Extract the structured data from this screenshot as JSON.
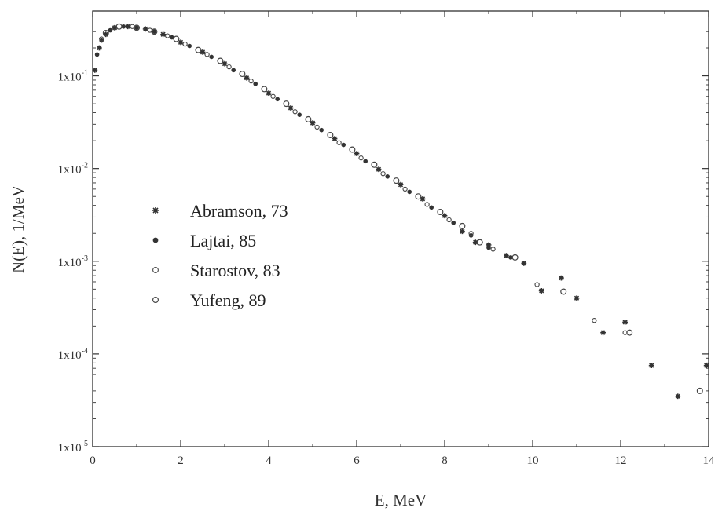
{
  "chart_data": {
    "type": "scatter",
    "title": "",
    "xlabel": "E, MeV",
    "ylabel": "N(E), 1/MeV",
    "xlim": [
      0,
      14
    ],
    "ylim": [
      1e-05,
      0.5
    ],
    "yscale": "log",
    "grid": false,
    "legend_position": "center-left",
    "x_ticks": [
      "0",
      "2",
      "4",
      "6",
      "8",
      "10",
      "12",
      "14"
    ],
    "y_ticks": [
      {
        "base": "1x10",
        "exp": "-5"
      },
      {
        "base": "1x10",
        "exp": "-4"
      },
      {
        "base": "1x10",
        "exp": "-3"
      },
      {
        "base": "1x10",
        "exp": "-2"
      },
      {
        "base": "1x10",
        "exp": "-1"
      }
    ],
    "y_tick_values": [
      1e-05,
      0.0001,
      0.001,
      0.01,
      0.1
    ],
    "series": [
      {
        "name": "Abramson, 73",
        "marker": "star",
        "x": [
          0.05,
          0.15,
          0.3,
          0.5,
          0.8,
          1.2,
          1.6,
          2.0,
          2.5,
          3.0,
          3.5,
          4.0,
          4.5,
          5.0,
          5.5,
          6.0,
          6.5,
          7.0,
          7.5,
          8.0,
          8.4,
          8.7,
          9.0,
          9.4,
          9.8,
          10.2,
          10.65,
          11.0,
          11.6,
          12.1,
          12.7,
          13.3,
          13.95
        ],
        "y": [
          0.115,
          0.2,
          0.28,
          0.33,
          0.34,
          0.32,
          0.28,
          0.23,
          0.18,
          0.135,
          0.095,
          0.065,
          0.045,
          0.031,
          0.021,
          0.0145,
          0.0098,
          0.0067,
          0.0047,
          0.0031,
          0.0021,
          0.0016,
          0.0015,
          0.00115,
          0.00095,
          0.00048,
          0.00066,
          0.0004,
          0.00017,
          0.00022,
          7.5e-05,
          3.5e-05,
          7.5e-05
        ]
      },
      {
        "name": "Lajtai, 85",
        "marker": "dot",
        "x": [
          0.1,
          0.2,
          0.4,
          0.7,
          1.0,
          1.4,
          1.8,
          2.2,
          2.7,
          3.2,
          3.7,
          4.2,
          4.7,
          5.2,
          5.7,
          6.2,
          6.7,
          7.2,
          7.7,
          8.2,
          8.6,
          9.0,
          9.5
        ],
        "y": [
          0.17,
          0.24,
          0.31,
          0.34,
          0.33,
          0.3,
          0.26,
          0.21,
          0.16,
          0.115,
          0.082,
          0.056,
          0.038,
          0.026,
          0.018,
          0.012,
          0.0082,
          0.0056,
          0.0038,
          0.0026,
          0.0019,
          0.0014,
          0.0011
        ]
      },
      {
        "name": "Starostov, 83",
        "marker": "circle-small",
        "x": [
          0.2,
          0.5,
          0.9,
          1.3,
          1.7,
          2.1,
          2.6,
          3.1,
          3.6,
          4.1,
          4.6,
          5.1,
          5.6,
          6.1,
          6.6,
          7.1,
          7.6,
          8.1,
          8.6,
          9.1,
          10.1,
          11.4,
          12.1
        ],
        "y": [
          0.25,
          0.33,
          0.34,
          0.31,
          0.27,
          0.22,
          0.17,
          0.125,
          0.088,
          0.06,
          0.041,
          0.028,
          0.019,
          0.013,
          0.0088,
          0.006,
          0.0041,
          0.0028,
          0.002,
          0.00135,
          0.00056,
          0.00023,
          0.00017
        ]
      },
      {
        "name": "Yufeng, 89",
        "marker": "circle",
        "x": [
          0.3,
          0.6,
          1.0,
          1.4,
          1.9,
          2.4,
          2.9,
          3.4,
          3.9,
          4.4,
          4.9,
          5.4,
          5.9,
          6.4,
          6.9,
          7.4,
          7.9,
          8.4,
          8.8,
          9.6,
          10.7,
          12.2,
          13.8
        ],
        "y": [
          0.29,
          0.34,
          0.33,
          0.3,
          0.25,
          0.19,
          0.145,
          0.105,
          0.072,
          0.05,
          0.034,
          0.023,
          0.016,
          0.011,
          0.0074,
          0.005,
          0.0034,
          0.0024,
          0.0016,
          0.0011,
          0.00047,
          0.00017,
          4e-05
        ]
      }
    ]
  }
}
